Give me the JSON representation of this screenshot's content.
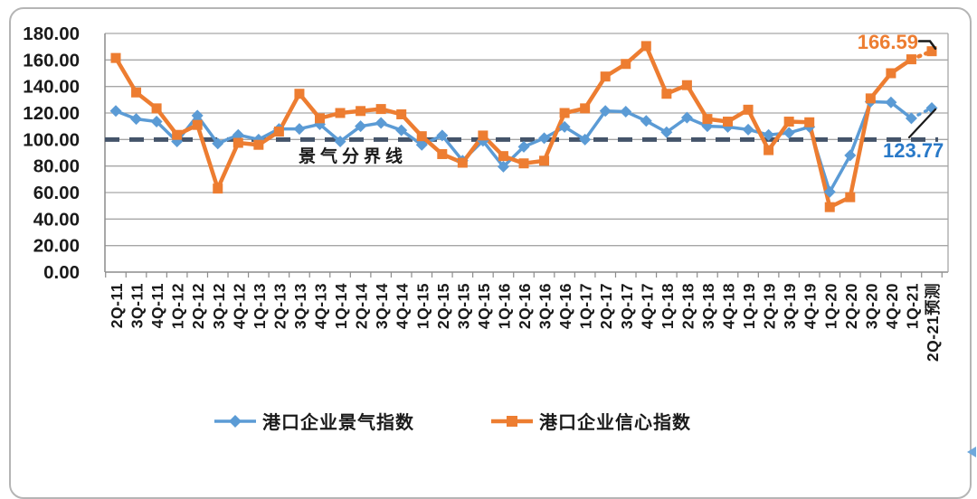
{
  "chart_data": {
    "type": "line",
    "title": "",
    "categories": [
      "2Q-11",
      "3Q-11",
      "4Q-11",
      "1Q-12",
      "2Q-12",
      "3Q-12",
      "4Q-12",
      "1Q-13",
      "2Q-13",
      "3Q-13",
      "4Q-13",
      "1Q-14",
      "2Q-14",
      "3Q-14",
      "4Q-14",
      "1Q-15",
      "2Q-15",
      "3Q-15",
      "4Q-15",
      "1Q-16",
      "2Q-16",
      "3Q-16",
      "4Q-16",
      "1Q-17",
      "2Q-17",
      "3Q-17",
      "4Q-17",
      "1Q-18",
      "2Q-18",
      "3Q-18",
      "4Q-18",
      "1Q-19",
      "2Q-19",
      "3Q-19",
      "4Q-19",
      "1Q-20",
      "2Q-20",
      "3Q-20",
      "4Q-20",
      "1Q-21",
      "2Q-21预测"
    ],
    "series": [
      {
        "name": "港口企业景气指数",
        "color": "#5B9BD5",
        "marker": "diamond",
        "values": [
          121.5,
          115.5,
          113.5,
          98.5,
          118,
          97,
          103.5,
          100,
          108,
          108,
          111.5,
          98.5,
          110,
          112.5,
          107,
          96,
          103,
          84,
          99,
          79.5,
          94.5,
          101,
          109.5,
          100,
          121.5,
          121,
          114,
          105.5,
          116.5,
          110,
          109.5,
          107.5,
          103.5,
          105,
          109.5,
          60.5,
          88,
          128.5,
          128,
          116,
          123.77
        ]
      },
      {
        "name": "港口企业信心指数",
        "color": "#ED7D31",
        "marker": "square",
        "values": [
          161.5,
          135.5,
          123.5,
          103.5,
          111,
          63,
          97.5,
          96,
          106,
          134.5,
          116,
          120,
          121.5,
          123,
          119,
          102.5,
          89,
          82.5,
          103,
          87.5,
          82,
          84,
          120,
          123.5,
          147.5,
          157,
          170.5,
          134.5,
          141,
          115.5,
          113.5,
          122.5,
          92,
          113.5,
          113,
          49,
          56.5,
          131,
          150,
          160.5,
          166.59
        ]
      }
    ],
    "ylim": [
      0,
      180
    ],
    "y_tick_step": 20,
    "y_axis_labels": [
      "180.00",
      "160.00",
      "140.00",
      "120.00",
      "100.00",
      "80.00",
      "60.00",
      "40.00",
      "20.00",
      "0.00"
    ],
    "grid": "horizontal",
    "legend_position": "bottom",
    "reference_line": {
      "value": 100,
      "label": "景气分界线",
      "color": "#44546A"
    },
    "annotations": [
      {
        "text": "166.59",
        "color": "#ED7D31",
        "series": "港口企业信心指数",
        "point": "2Q-21预测"
      },
      {
        "text": "123.77",
        "color": "#2979C8",
        "series": "港口企业景气指数",
        "point": "2Q-21预测"
      }
    ],
    "forecast_last_segment_dotted": true
  }
}
